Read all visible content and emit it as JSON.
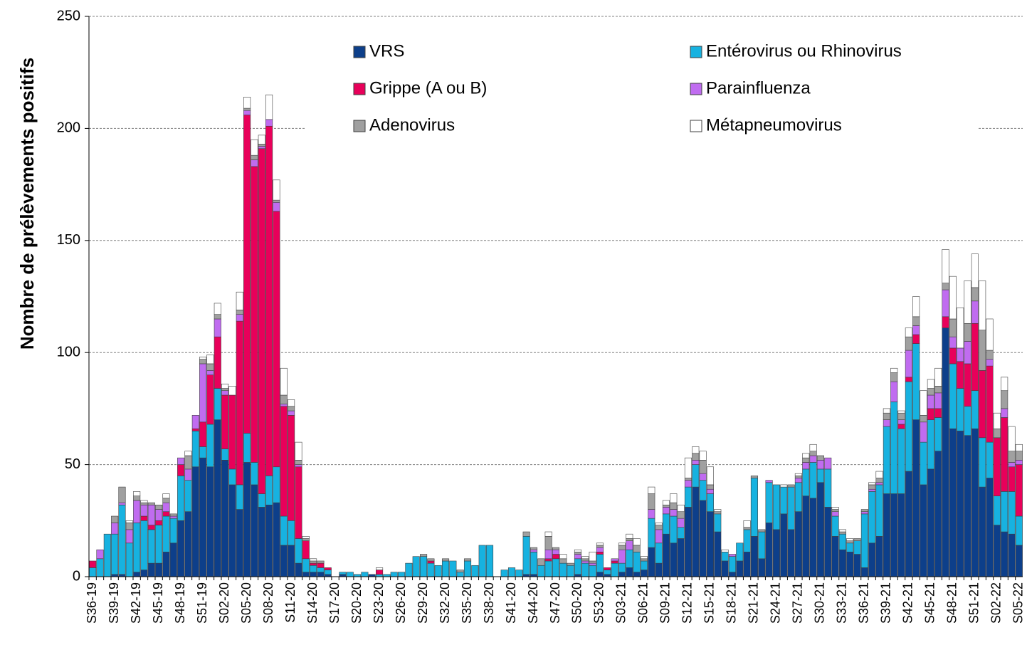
{
  "chart_data": {
    "type": "stacked_bar",
    "y_label": "Nombre de prélèvements positifs",
    "ylim": [
      0,
      250
    ],
    "yticks": [
      0,
      50,
      100,
      150,
      200,
      250
    ],
    "grid": true,
    "categories": [
      "S36-19",
      null,
      null,
      "S39-19",
      null,
      null,
      "S42-19",
      null,
      null,
      "S45-19",
      null,
      null,
      "S48-19",
      null,
      null,
      "S51-19",
      null,
      null,
      "S02-20",
      null,
      null,
      "S05-20",
      null,
      null,
      "S08-20",
      null,
      null,
      "S11-20",
      null,
      null,
      "S14-20",
      null,
      null,
      "S17-20",
      null,
      null,
      "S20-20",
      null,
      null,
      "S23-20",
      null,
      null,
      "S26-20",
      null,
      null,
      "S29-20",
      null,
      null,
      "S32-20",
      null,
      null,
      "S35-20",
      null,
      null,
      "S38-20",
      null,
      null,
      "S41-20",
      null,
      null,
      "S44-20",
      null,
      null,
      "S47-20",
      null,
      null,
      "S50-20",
      null,
      null,
      "S53-20",
      null,
      null,
      "S03-21",
      null,
      null,
      "S06-21",
      null,
      null,
      "S09-21",
      null,
      null,
      "S12-21",
      null,
      null,
      "S15-21",
      null,
      null,
      "S18-21",
      null,
      null,
      "S21-21",
      null,
      null,
      "S24-21",
      null,
      null,
      "S27-21",
      null,
      null,
      "S30-21",
      null,
      null,
      "S33-21",
      null,
      null,
      "S36-21",
      null,
      null,
      "S39-21",
      null,
      null,
      "S42-21",
      null,
      null,
      "S45-21",
      null,
      null,
      "S48-21",
      null,
      null,
      "S51-21",
      null,
      null,
      "S02-22",
      null,
      null,
      "S05-22"
    ],
    "series": [
      {
        "name": "VRS",
        "color": "#0d3f8a",
        "values": [
          0,
          0,
          0,
          1,
          1,
          0,
          2,
          3,
          6,
          6,
          11,
          15,
          25,
          29,
          49,
          53,
          49,
          70,
          52,
          41,
          30,
          51,
          41,
          31,
          32,
          33,
          14,
          14,
          6,
          2,
          2,
          2,
          1,
          0,
          1,
          0,
          0,
          0,
          1,
          0,
          0,
          0,
          0,
          0,
          0,
          0,
          0,
          0,
          0,
          0,
          0,
          0,
          0,
          0,
          0,
          0,
          0,
          0,
          0,
          1,
          1,
          0,
          0,
          0,
          0,
          0,
          1,
          0,
          0,
          2,
          1,
          0,
          2,
          4,
          2,
          3,
          13,
          6,
          19,
          15,
          17,
          31,
          40,
          34,
          29,
          20,
          7,
          2,
          7,
          11,
          18,
          8,
          24,
          21,
          28,
          21,
          29,
          36,
          35,
          42,
          31,
          18,
          12,
          11,
          10,
          4,
          15,
          18,
          37,
          37,
          37,
          47,
          70,
          41,
          48,
          56,
          111,
          66,
          65,
          63,
          66,
          40,
          44,
          23,
          20,
          19,
          14
        ]
      },
      {
        "name": "Entérovirus ou Rhinovirus",
        "color": "#17b2e0",
        "values": [
          4,
          8,
          19,
          18,
          31,
          15,
          22,
          22,
          15,
          17,
          16,
          11,
          20,
          14,
          16,
          5,
          19,
          14,
          5,
          7,
          11,
          13,
          10,
          6,
          13,
          16,
          13,
          11,
          11,
          6,
          3,
          2,
          2,
          0,
          1,
          2,
          1,
          2,
          0,
          1,
          1,
          2,
          2,
          6,
          9,
          9,
          6,
          5,
          7,
          7,
          2,
          7,
          5,
          14,
          14,
          0,
          3,
          4,
          3,
          17,
          10,
          5,
          7,
          8,
          6,
          5,
          7,
          6,
          5,
          8,
          2,
          6,
          4,
          8,
          9,
          4,
          13,
          9,
          9,
          12,
          5,
          9,
          10,
          9,
          8,
          8,
          4,
          7,
          8,
          10,
          26,
          12,
          18,
          20,
          12,
          19,
          13,
          12,
          16,
          6,
          17,
          9,
          7,
          4,
          6,
          24,
          23,
          23,
          30,
          41,
          29,
          40,
          34,
          19,
          22,
          15,
          0,
          29,
          19,
          13,
          17,
          22,
          16,
          13,
          18,
          19,
          13
        ]
      },
      {
        "name": "Grippe (A ou B)",
        "color": "#e8005a",
        "values": [
          3,
          0,
          0,
          0,
          0,
          0,
          0,
          2,
          2,
          2,
          2,
          0,
          5,
          0,
          1,
          11,
          22,
          23,
          24,
          33,
          73,
          142,
          132,
          154,
          156,
          114,
          49,
          47,
          32,
          8,
          1,
          2,
          1,
          0,
          0,
          0,
          0,
          0,
          0,
          2,
          0,
          0,
          0,
          0,
          0,
          0,
          1,
          0,
          0,
          0,
          0,
          0,
          0,
          0,
          0,
          0,
          0,
          0,
          0,
          0,
          0,
          0,
          1,
          2,
          0,
          0,
          0,
          0,
          0,
          1,
          1,
          1,
          0,
          0,
          0,
          0,
          0,
          0,
          0,
          0,
          0,
          0,
          0,
          0,
          0,
          0,
          0,
          0,
          0,
          0,
          0,
          0,
          0,
          0,
          0,
          0,
          0,
          0,
          0,
          0,
          0,
          0,
          0,
          0,
          0,
          0,
          0,
          0,
          0,
          0,
          2,
          2,
          4,
          0,
          5,
          4,
          5,
          7,
          12,
          19,
          30,
          30,
          34,
          26,
          33,
          11,
          23
        ]
      },
      {
        "name": "Parainfluenza",
        "color": "#c06cf0",
        "values": [
          0,
          4,
          0,
          5,
          1,
          6,
          10,
          5,
          9,
          5,
          4,
          1,
          3,
          5,
          6,
          26,
          2,
          8,
          2,
          0,
          3,
          2,
          3,
          1,
          3,
          4,
          1,
          2,
          1,
          0,
          0,
          0,
          0,
          0,
          0,
          0,
          0,
          0,
          0,
          0,
          0,
          0,
          0,
          0,
          0,
          0,
          0,
          0,
          0,
          0,
          0,
          0,
          0,
          0,
          0,
          0,
          0,
          0,
          0,
          0,
          1,
          0,
          4,
          2,
          0,
          0,
          2,
          1,
          1,
          2,
          0,
          1,
          6,
          4,
          0,
          0,
          4,
          6,
          3,
          3,
          4,
          3,
          2,
          3,
          2,
          0,
          0,
          1,
          0,
          0,
          0,
          0,
          1,
          0,
          0,
          0,
          2,
          3,
          3,
          4,
          5,
          2,
          0,
          0,
          0,
          1,
          1,
          1,
          3,
          9,
          2,
          12,
          4,
          9,
          6,
          7,
          12,
          5,
          6,
          10,
          10,
          0,
          3,
          0,
          4,
          2,
          2
        ]
      },
      {
        "name": "Adenovirus",
        "color": "#a0a0a0",
        "values": [
          0,
          0,
          0,
          3,
          7,
          3,
          2,
          1,
          1,
          2,
          2,
          1,
          0,
          6,
          0,
          2,
          3,
          2,
          1,
          0,
          2,
          1,
          2,
          1,
          0,
          1,
          4,
          2,
          2,
          1,
          1,
          1,
          0,
          0,
          0,
          0,
          0,
          0,
          0,
          0,
          0,
          0,
          0,
          0,
          0,
          1,
          1,
          0,
          1,
          0,
          1,
          1,
          0,
          0,
          0,
          0,
          0,
          0,
          0,
          2,
          1,
          3,
          6,
          1,
          2,
          1,
          1,
          1,
          1,
          1,
          0,
          0,
          2,
          1,
          3,
          1,
          7,
          2,
          1,
          3,
          3,
          1,
          3,
          6,
          2,
          1,
          0,
          0,
          0,
          1,
          1,
          1,
          0,
          0,
          0,
          1,
          1,
          2,
          2,
          2,
          0,
          1,
          1,
          1,
          1,
          1,
          2,
          2,
          3,
          4,
          3,
          6,
          4,
          3,
          3,
          3,
          3,
          8,
          0,
          8,
          6,
          18,
          4,
          4,
          8,
          5,
          4
        ]
      },
      {
        "name": "Métapneumovirus",
        "color": "#ffffff",
        "values": [
          0,
          0,
          0,
          0,
          0,
          1,
          2,
          1,
          0,
          0,
          2,
          0,
          0,
          2,
          0,
          1,
          4,
          5,
          2,
          4,
          8,
          5,
          7,
          4,
          11,
          9,
          12,
          3,
          8,
          1,
          1,
          0,
          0,
          0,
          0,
          0,
          0,
          0,
          0,
          1,
          0,
          0,
          0,
          0,
          0,
          0,
          0,
          0,
          0,
          0,
          0,
          0,
          0,
          0,
          0,
          0,
          0,
          0,
          0,
          0,
          0,
          0,
          2,
          0,
          2,
          0,
          1,
          1,
          4,
          1,
          0,
          0,
          1,
          2,
          3,
          1,
          3,
          1,
          2,
          4,
          3,
          9,
          3,
          4,
          8,
          1,
          1,
          0,
          0,
          3,
          0,
          0,
          0,
          0,
          1,
          0,
          1,
          2,
          3,
          0,
          0,
          1,
          1,
          1,
          0,
          0,
          1,
          3,
          2,
          2,
          1,
          4,
          9,
          11,
          4,
          8,
          15,
          19,
          18,
          19,
          15,
          22,
          14,
          7,
          6,
          11,
          3
        ]
      }
    ]
  }
}
